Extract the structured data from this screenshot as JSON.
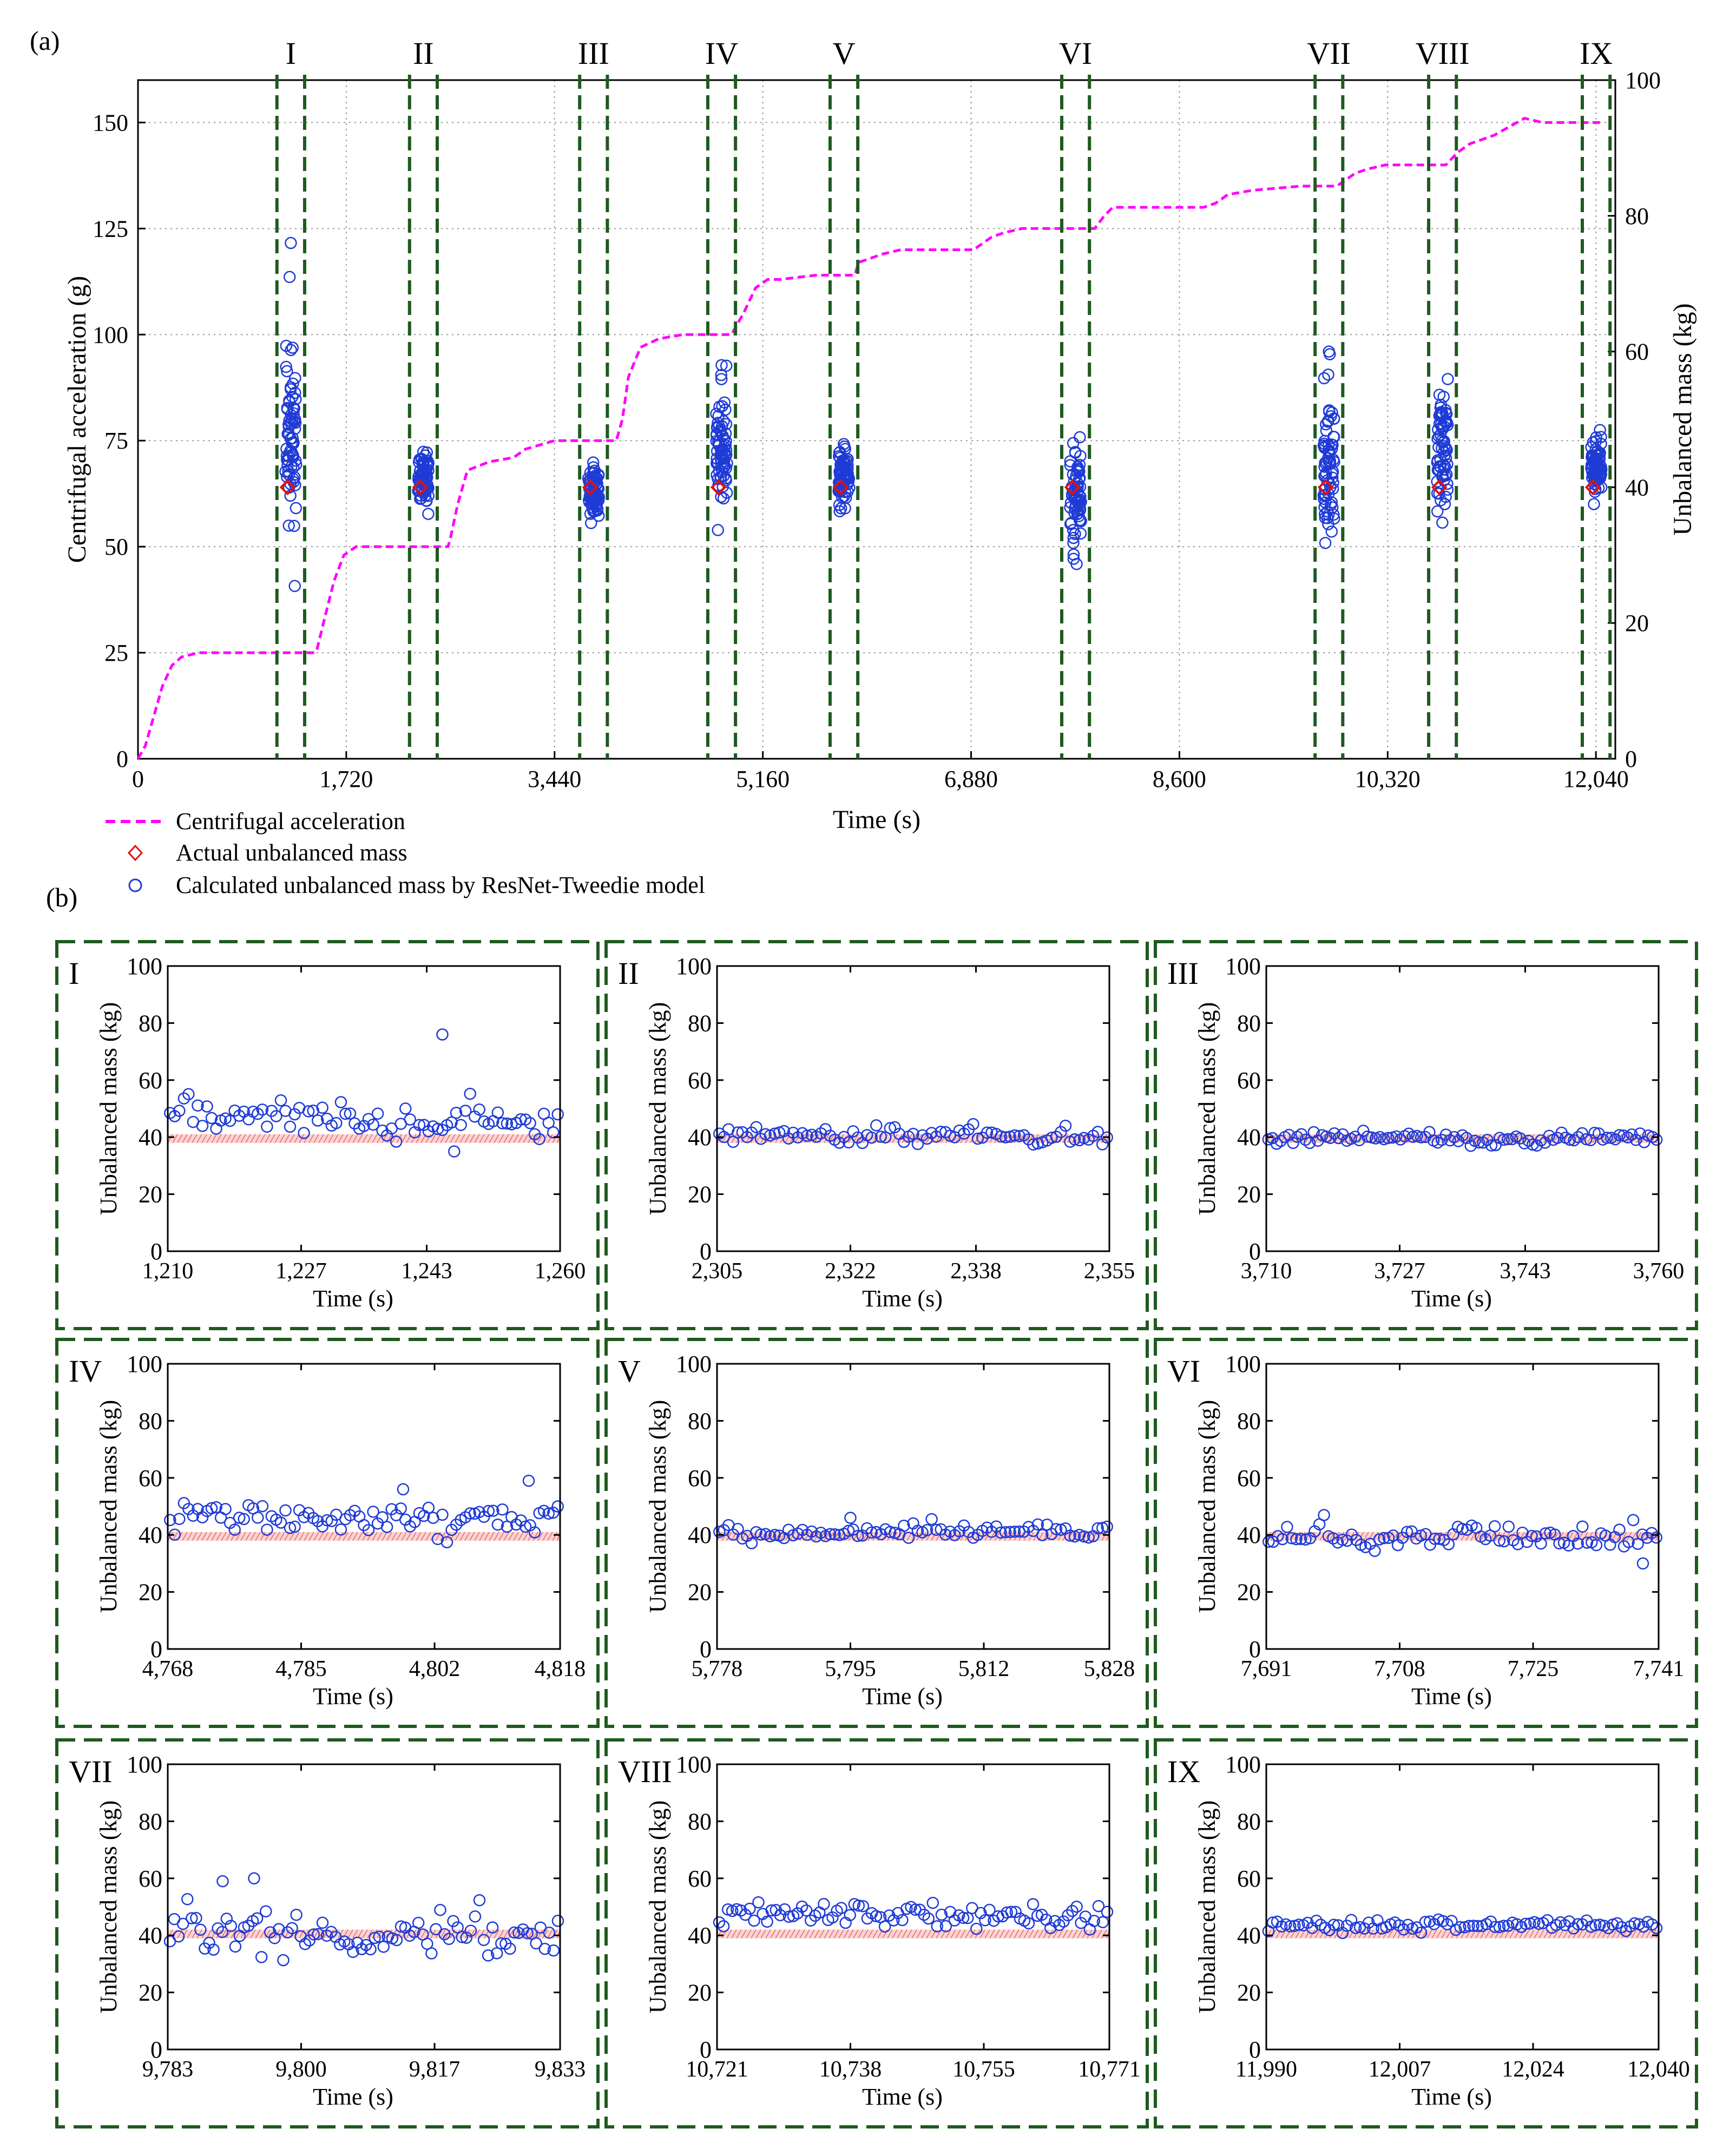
{
  "panel_a_label": "(a)",
  "panel_b_label": "(b)",
  "colors": {
    "acceleration": "#ff00ff",
    "calculated": "#1f3bd6",
    "actual": "#e01010",
    "window": "#1f5a1f",
    "grid": "#9a9a9a",
    "band": "#f6b0b0",
    "roman": "#e01010"
  },
  "chart_data": [
    {
      "id": "a",
      "type": "line",
      "xlabel": "Time (s)",
      "ylabel": "Centrifugal acceleration (g)",
      "y2label": "Unbalanced mass (kg)",
      "xlim": [
        0,
        12200
      ],
      "ylim": [
        0,
        160
      ],
      "y2lim": [
        0,
        100
      ],
      "xticks": [
        0,
        1720,
        3440,
        5160,
        6880,
        8600,
        10320,
        12040
      ],
      "xtick_labels": [
        "0",
        "1,720",
        "3,440",
        "5,160",
        "6,880",
        "8,600",
        "10,320",
        "12,040"
      ],
      "yticks": [
        0,
        25,
        50,
        75,
        100,
        125,
        150
      ],
      "y2ticks": [
        0,
        20,
        40,
        60,
        80,
        100
      ],
      "grid": true,
      "legend_position": "bottom-left",
      "legend": [
        {
          "label": "Centrifugal acceleration",
          "marker": "dashed-line"
        },
        {
          "label": "Actual unbalanced mass",
          "marker": "diamond"
        },
        {
          "label": "Calculated unbalanced mass by ResNet-Tweedie model",
          "marker": "circle"
        }
      ],
      "acceleration_series": {
        "x": [
          0,
          60,
          120,
          200,
          280,
          360,
          500,
          1000,
          1460,
          1480,
          1540,
          1620,
          1700,
          1800,
          1950,
          2100,
          2560,
          2580,
          2640,
          2720,
          2900,
          3100,
          3200,
          3440,
          3700,
          3900,
          3950,
          4000,
          4050,
          4150,
          4300,
          4500,
          4800,
          4900,
          5000,
          5100,
          5200,
          5300,
          5600,
          5920,
          5950,
          6050,
          6150,
          6300,
          6600,
          6900,
          7050,
          7150,
          7300,
          7600,
          7900,
          7980,
          8050,
          8200,
          8500,
          8800,
          8900,
          9000,
          9200,
          9600,
          9900,
          10050,
          10150,
          10300,
          10600,
          10800,
          10900,
          11000,
          11200,
          11450,
          11600,
          11800,
          12100
        ],
        "y": [
          0,
          3,
          9,
          17,
          22,
          24,
          25,
          25,
          25,
          26,
          33,
          42,
          48,
          50,
          50,
          50,
          50,
          52,
          60,
          68,
          70,
          71,
          73,
          75,
          75,
          75,
          75,
          80,
          90,
          97,
          99,
          100,
          100,
          100,
          105,
          111,
          113,
          113,
          114,
          114,
          117,
          118,
          119,
          120,
          120,
          120,
          123,
          124,
          125,
          125,
          125,
          128,
          130,
          130,
          130,
          130,
          131,
          133,
          134,
          135,
          135,
          138,
          139,
          140,
          140,
          140,
          143,
          145,
          147,
          151,
          150,
          150,
          150
        ]
      },
      "windows": [
        {
          "label": "I",
          "start": 1210,
          "end": 1260,
          "mass_mean": 47,
          "mass_spread": 9,
          "n": 70,
          "outliers": [
            76
          ],
          "actual": 40
        },
        {
          "label": "II",
          "start": 2305,
          "end": 2355,
          "mass_mean": 41,
          "mass_spread": 3,
          "n": 70,
          "outliers": [],
          "actual": 40
        },
        {
          "label": "III",
          "start": 3710,
          "end": 3760,
          "mass_mean": 40,
          "mass_spread": 2.5,
          "n": 70,
          "outliers": [],
          "actual": 40
        },
        {
          "label": "IV",
          "start": 4768,
          "end": 4818,
          "mass_mean": 46,
          "mass_spread": 6,
          "n": 70,
          "outliers": [
            58
          ],
          "actual": 40
        },
        {
          "label": "V",
          "start": 5778,
          "end": 5828,
          "mass_mean": 41,
          "mass_spread": 3,
          "n": 70,
          "outliers": [],
          "actual": 40
        },
        {
          "label": "VI",
          "start": 7691,
          "end": 7741,
          "mass_mean": 39,
          "mass_spread": 5,
          "n": 70,
          "outliers": [],
          "actual": 40
        },
        {
          "label": "VII",
          "start": 9783,
          "end": 9833,
          "mass_mean": 43,
          "mass_spread": 8,
          "n": 70,
          "outliers": [
            60
          ],
          "actual": 40
        },
        {
          "label": "VIII",
          "start": 10721,
          "end": 10771,
          "mass_mean": 46,
          "mass_spread": 6,
          "n": 70,
          "outliers": [],
          "actual": 40
        },
        {
          "label": "IX",
          "start": 11990,
          "end": 12040,
          "mass_mean": 43,
          "mass_spread": 2.5,
          "n": 70,
          "outliers": [],
          "actual": 40
        }
      ]
    },
    {
      "id": "b-I",
      "type": "scatter",
      "label": "I",
      "xlabel": "Time (s)",
      "ylabel": "Unbalanced mass (kg)",
      "xlim": [
        1210,
        1260
      ],
      "ylim": [
        0,
        100
      ],
      "xticks": [
        1210,
        1227,
        1243,
        1260
      ],
      "xtick_labels": [
        "1,210",
        "1,227",
        "1,243",
        "1,260"
      ],
      "yticks": [
        0,
        20,
        40,
        60,
        80,
        100
      ],
      "actual_band": [
        38,
        41
      ],
      "mass_mean": 46.5,
      "mass_spread": 5.5,
      "n": 85,
      "outliers": [
        {
          "x": 1245,
          "y": 76
        },
        {
          "x": 1246.5,
          "y": 35
        }
      ]
    },
    {
      "id": "b-II",
      "type": "scatter",
      "label": "II",
      "xlabel": "Time (s)",
      "ylabel": "Unbalanced mass (kg)",
      "xlim": [
        2305,
        2355
      ],
      "ylim": [
        0,
        100
      ],
      "xticks": [
        2305,
        2322,
        2338,
        2355
      ],
      "xtick_labels": [
        "2,305",
        "2,322",
        "2,338",
        "2,355"
      ],
      "yticks": [
        0,
        20,
        40,
        60,
        80,
        100
      ],
      "actual_band": [
        38,
        41
      ],
      "mass_mean": 40.5,
      "mass_spread": 2.5,
      "n": 85,
      "outliers": []
    },
    {
      "id": "b-III",
      "type": "scatter",
      "label": "III",
      "xlabel": "Time (s)",
      "ylabel": "Unbalanced mass (kg)",
      "xlim": [
        3710,
        3760
      ],
      "ylim": [
        0,
        100
      ],
      "xticks": [
        3710,
        3727,
        3743,
        3760
      ],
      "xtick_labels": [
        "3,710",
        "3,727",
        "3,743",
        "3,760"
      ],
      "yticks": [
        0,
        20,
        40,
        60,
        80,
        100
      ],
      "actual_band": [
        38,
        41
      ],
      "mass_mean": 39.5,
      "mass_spread": 1.8,
      "n": 95,
      "outliers": []
    },
    {
      "id": "b-IV",
      "type": "scatter",
      "label": "IV",
      "xlabel": "Time (s)",
      "ylabel": "Unbalanced mass (kg)",
      "xlim": [
        4768,
        4818
      ],
      "ylim": [
        0,
        100
      ],
      "xticks": [
        4768,
        4785,
        4802,
        4818
      ],
      "xtick_labels": [
        "4,768",
        "4,785",
        "4,802",
        "4,818"
      ],
      "yticks": [
        0,
        20,
        40,
        60,
        80,
        100
      ],
      "actual_band": [
        38,
        41
      ],
      "mass_mean": 46,
      "mass_spread": 4.5,
      "n": 85,
      "outliers": [
        {
          "x": 4814,
          "y": 59
        },
        {
          "x": 4798,
          "y": 56
        }
      ]
    },
    {
      "id": "b-V",
      "type": "scatter",
      "label": "V",
      "xlabel": "Time (s)",
      "ylabel": "Unbalanced mass (kg)",
      "xlim": [
        5778,
        5828
      ],
      "ylim": [
        0,
        100
      ],
      "xticks": [
        5778,
        5795,
        5812,
        5828
      ],
      "xtick_labels": [
        "5,778",
        "5,795",
        "5,812",
        "5,828"
      ],
      "yticks": [
        0,
        20,
        40,
        60,
        80,
        100
      ],
      "actual_band": [
        38,
        41
      ],
      "mass_mean": 41,
      "mass_spread": 2.2,
      "n": 85,
      "outliers": [
        {
          "x": 5795,
          "y": 46
        }
      ]
    },
    {
      "id": "b-VI",
      "type": "scatter",
      "label": "VI",
      "xlabel": "Time (s)",
      "ylabel": "Unbalanced mass (kg)",
      "xlim": [
        7691,
        7741
      ],
      "ylim": [
        0,
        100
      ],
      "xticks": [
        7691,
        7708,
        7725,
        7741
      ],
      "xtick_labels": [
        "7,691",
        "7,708",
        "7,725",
        "7,741"
      ],
      "yticks": [
        0,
        20,
        40,
        60,
        80,
        100
      ],
      "actual_band": [
        38,
        41
      ],
      "mass_mean": 39,
      "mass_spread": 3.2,
      "n": 85,
      "outliers": [
        {
          "x": 7739,
          "y": 30
        }
      ]
    },
    {
      "id": "b-VII",
      "type": "scatter",
      "label": "VII",
      "xlabel": "Time (s)",
      "ylabel": "Unbalanced mass (kg)",
      "xlim": [
        9783,
        9833
      ],
      "ylim": [
        0,
        100
      ],
      "xticks": [
        9783,
        9800,
        9817,
        9833
      ],
      "xtick_labels": [
        "9,783",
        "9,800",
        "9,817",
        "9,833"
      ],
      "yticks": [
        0,
        20,
        40,
        60,
        80,
        100
      ],
      "actual_band": [
        39,
        42
      ],
      "mass_mean": 41,
      "mass_spread": 6,
      "n": 90,
      "outliers": [
        {
          "x": 9790,
          "y": 59
        },
        {
          "x": 9794,
          "y": 60
        }
      ]
    },
    {
      "id": "b-VIII",
      "type": "scatter",
      "label": "VIII",
      "xlabel": "Time (s)",
      "ylabel": "Unbalanced mass (kg)",
      "xlim": [
        10721,
        10771
      ],
      "ylim": [
        0,
        100
      ],
      "xticks": [
        10721,
        10738,
        10755,
        10771
      ],
      "xtick_labels": [
        "10,721",
        "10,738",
        "10,755",
        "10,771"
      ],
      "yticks": [
        0,
        20,
        40,
        60,
        80,
        100
      ],
      "actual_band": [
        39,
        42
      ],
      "mass_mean": 46.5,
      "mass_spread": 4,
      "n": 90,
      "outliers": []
    },
    {
      "id": "b-IX",
      "type": "scatter",
      "label": "IX",
      "xlabel": "Time (s)",
      "ylabel": "Unbalanced mass (kg)",
      "xlim": [
        11990,
        12040
      ],
      "ylim": [
        0,
        100
      ],
      "xticks": [
        11990,
        12007,
        12024,
        12040
      ],
      "xtick_labels": [
        "11,990",
        "12,007",
        "12,024",
        "12,040"
      ],
      "yticks": [
        0,
        20,
        40,
        60,
        80,
        100
      ],
      "actual_band": [
        39,
        42
      ],
      "mass_mean": 43.5,
      "mass_spread": 1.6,
      "n": 90,
      "outliers": []
    }
  ]
}
